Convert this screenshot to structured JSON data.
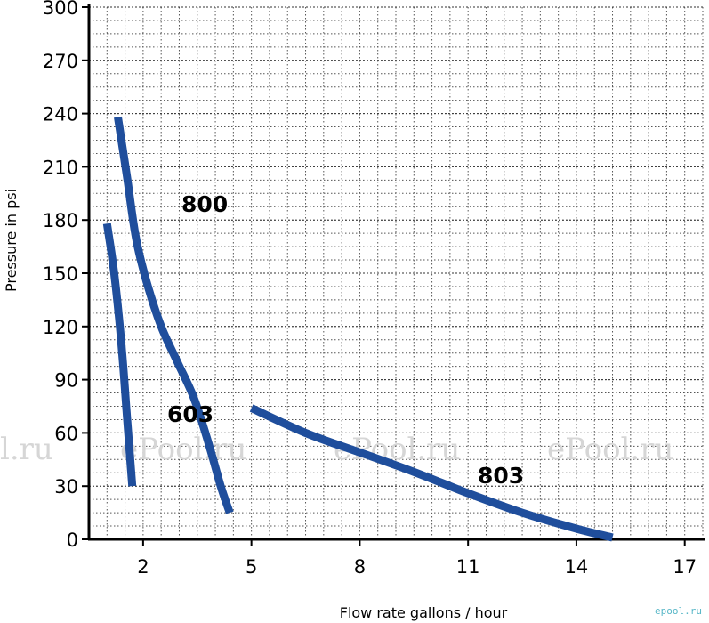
{
  "chart_data": {
    "type": "line",
    "xlabel": "Flow rate gallons / hour",
    "ylabel": "Pressure in psi",
    "xlim": [
      0.5,
      17.5
    ],
    "ylim": [
      0,
      300
    ],
    "x_ticks": [
      2,
      5,
      8,
      11,
      14,
      17
    ],
    "y_ticks": [
      0,
      30,
      60,
      90,
      120,
      150,
      180,
      210,
      240,
      270,
      300
    ],
    "grid": true,
    "series": [
      {
        "name": "603",
        "color": "#1f4e9c",
        "points": [
          [
            1.0,
            178
          ],
          [
            1.2,
            150
          ],
          [
            1.4,
            110
          ],
          [
            1.55,
            70
          ],
          [
            1.7,
            30
          ]
        ]
      },
      {
        "name": "800",
        "color": "#1f4e9c",
        "points": [
          [
            1.3,
            238
          ],
          [
            1.55,
            205
          ],
          [
            1.8,
            170
          ],
          [
            2.1,
            145
          ],
          [
            2.5,
            120
          ],
          [
            2.95,
            100
          ],
          [
            3.4,
            80
          ],
          [
            3.8,
            55
          ],
          [
            4.15,
            30
          ],
          [
            4.4,
            15
          ]
        ]
      },
      {
        "name": "803",
        "color": "#1f4e9c",
        "points": [
          [
            5.0,
            74
          ],
          [
            6.5,
            60
          ],
          [
            8.0,
            49
          ],
          [
            9.5,
            38
          ],
          [
            11.0,
            26
          ],
          [
            12.5,
            15
          ],
          [
            14.0,
            6
          ],
          [
            15.0,
            1
          ]
        ]
      }
    ]
  },
  "watermarks": [
    "l.ru",
    "ePool.ru",
    "ePool.ru",
    "ePool.ru"
  ],
  "credit": "epool.ru"
}
